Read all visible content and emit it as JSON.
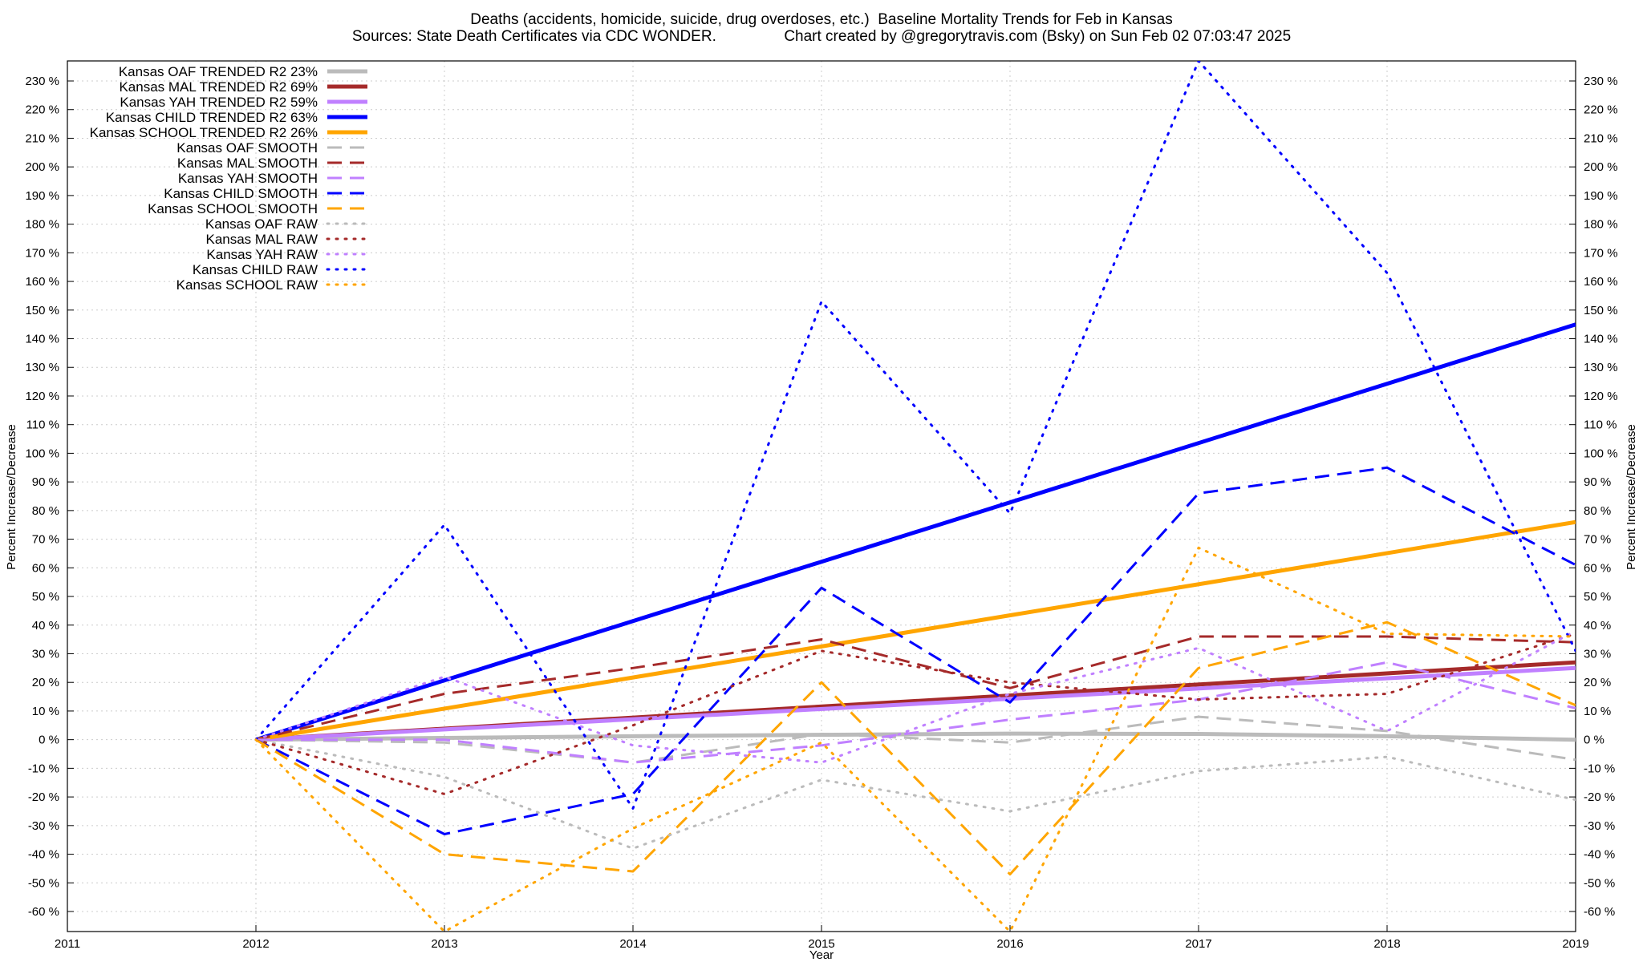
{
  "title": {
    "line1": "Deaths (accidents, homicide, suicide, drug overdoses, etc.)  Baseline Mortality Trends for Feb in Kansas",
    "line2": "Sources: State Death Certificates via CDC WONDER.                Chart created by @gregorytravis.com (Bsky) on Sun Feb 02 07:03:47 2025"
  },
  "chart_data": {
    "type": "line",
    "xlabel": "Year",
    "ylabel": "Percent Increase/Decrease",
    "xlim": [
      2011,
      2019
    ],
    "ylim": [
      -67,
      237
    ],
    "x_ticks": [
      "2011",
      "2012",
      "2013",
      "2014",
      "2015",
      "2016",
      "2017",
      "2018",
      "2019"
    ],
    "y_ticks": [
      -60,
      -50,
      -40,
      -30,
      -20,
      -10,
      0,
      10,
      20,
      30,
      40,
      50,
      60,
      70,
      80,
      90,
      100,
      110,
      120,
      130,
      140,
      150,
      160,
      170,
      180,
      190,
      200,
      210,
      220,
      230
    ],
    "y_tick_suffix": " %",
    "grid": true,
    "legend_position": "top-left",
    "series": [
      {
        "name": "Kansas OAF TRENDED R2  23%",
        "color": "#bbbbbb",
        "style": "solid",
        "width": 5,
        "x": [
          2012,
          2013,
          2014,
          2015,
          2016,
          2017,
          2018,
          2019
        ],
        "y": [
          0,
          0.6,
          1.2,
          1.7,
          2.1,
          2.0,
          1.2,
          0
        ]
      },
      {
        "name": "Kansas MAL TRENDED R2  69%",
        "color": "#a52a2a",
        "style": "solid",
        "width": 5,
        "x": [
          2012,
          2019
        ],
        "y": [
          0,
          27
        ]
      },
      {
        "name": "Kansas YAH TRENDED R2  59%",
        "color": "#c080ff",
        "style": "solid",
        "width": 5,
        "x": [
          2012,
          2019
        ],
        "y": [
          0,
          25
        ]
      },
      {
        "name": "Kansas CHILD TRENDED R2  63%",
        "color": "#0000ff",
        "style": "solid",
        "width": 5,
        "x": [
          2012,
          2019
        ],
        "y": [
          0,
          145
        ]
      },
      {
        "name": "Kansas SCHOOL TRENDED R2  26%",
        "color": "#ffa500",
        "style": "solid",
        "width": 5,
        "x": [
          2012,
          2019
        ],
        "y": [
          0,
          76
        ]
      },
      {
        "name": "Kansas OAF SMOOTH",
        "color": "#bbbbbb",
        "style": "dashed",
        "width": 3,
        "x": [
          2012,
          2013,
          2014,
          2015,
          2016,
          2017,
          2018,
          2019
        ],
        "y": [
          0,
          -1,
          -8,
          2,
          -1,
          8,
          3,
          -7
        ]
      },
      {
        "name": "Kansas MAL SMOOTH",
        "color": "#a52a2a",
        "style": "dashed",
        "width": 3,
        "x": [
          2012,
          2013,
          2014,
          2015,
          2016,
          2017,
          2018,
          2019
        ],
        "y": [
          0,
          16,
          25,
          35,
          18,
          36,
          36,
          34
        ]
      },
      {
        "name": "Kansas YAH SMOOTH",
        "color": "#c080ff",
        "style": "dashed",
        "width": 3,
        "x": [
          2012,
          2013,
          2014,
          2015,
          2016,
          2017,
          2018,
          2019
        ],
        "y": [
          0,
          0,
          -8,
          -2,
          7,
          14,
          27,
          11
        ]
      },
      {
        "name": "Kansas CHILD SMOOTH",
        "color": "#0000ff",
        "style": "dashed",
        "width": 3,
        "x": [
          2012,
          2013,
          2014,
          2015,
          2016,
          2017,
          2018,
          2019
        ],
        "y": [
          0,
          -33,
          -19,
          53,
          13,
          86,
          95,
          61
        ]
      },
      {
        "name": "Kansas SCHOOL SMOOTH",
        "color": "#ffa500",
        "style": "dashed",
        "width": 3,
        "x": [
          2012,
          2013,
          2014,
          2015,
          2016,
          2017,
          2018,
          2019
        ],
        "y": [
          0,
          -40,
          -46,
          20,
          -47,
          25,
          41,
          12
        ]
      },
      {
        "name": "Kansas OAF RAW",
        "color": "#bbbbbb",
        "style": "dotted",
        "width": 3,
        "x": [
          2012,
          2013,
          2014,
          2015,
          2016,
          2017,
          2018,
          2019
        ],
        "y": [
          0,
          -13,
          -38,
          -14,
          -25,
          -11,
          -6,
          -21
        ]
      },
      {
        "name": "Kansas MAL RAW",
        "color": "#a52a2a",
        "style": "dotted",
        "width": 3,
        "x": [
          2012,
          2013,
          2014,
          2015,
          2016,
          2017,
          2018,
          2019
        ],
        "y": [
          0,
          -19,
          5,
          31,
          20,
          14,
          16,
          37
        ]
      },
      {
        "name": "Kansas YAH RAW",
        "color": "#c080ff",
        "style": "dotted",
        "width": 3,
        "x": [
          2012,
          2013,
          2014,
          2015,
          2016,
          2017,
          2018,
          2019
        ],
        "y": [
          0,
          22,
          -2,
          -8,
          16,
          32,
          3,
          38
        ]
      },
      {
        "name": "Kansas CHILD RAW",
        "color": "#0000ff",
        "style": "dotted",
        "width": 3,
        "x": [
          2012,
          2013,
          2014,
          2015,
          2016,
          2017,
          2018,
          2019
        ],
        "y": [
          0,
          75,
          -24,
          153,
          79,
          237,
          163,
          31
        ]
      },
      {
        "name": "Kansas SCHOOL RAW",
        "color": "#ffa500",
        "style": "dotted",
        "width": 3,
        "x": [
          2012,
          2013,
          2014,
          2015,
          2016,
          2017,
          2018,
          2019
        ],
        "y": [
          0,
          -67,
          -31,
          -1,
          -67,
          67,
          37,
          36
        ]
      }
    ]
  }
}
